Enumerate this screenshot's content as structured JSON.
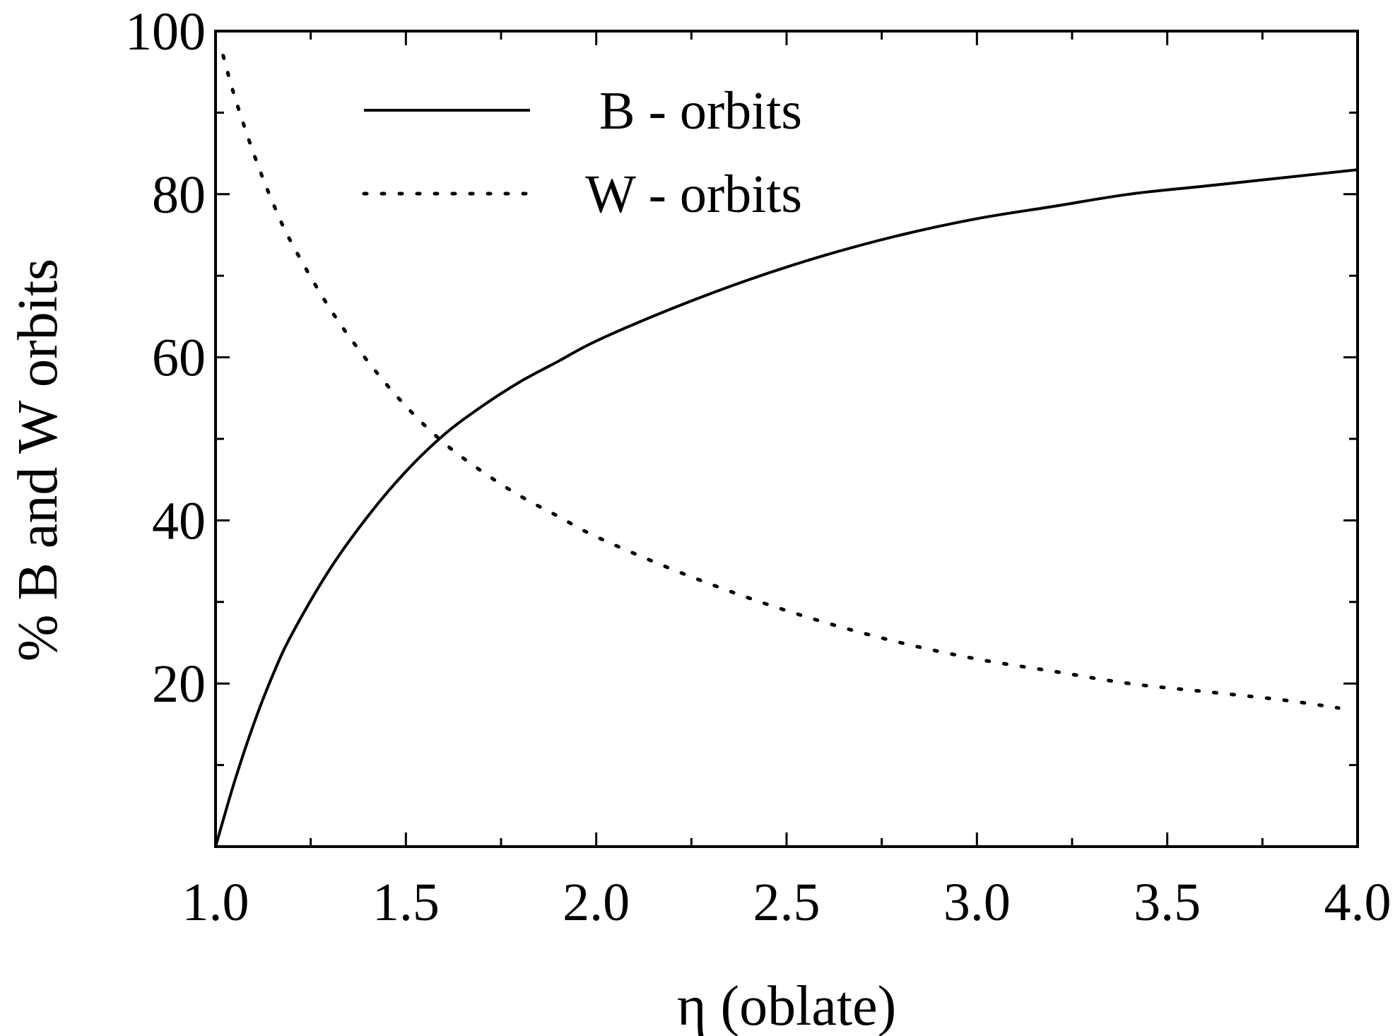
{
  "chart_data": {
    "type": "line",
    "title": "",
    "xlabel": "η (oblate)",
    "ylabel": "%  B and W orbits",
    "xlim": [
      1.0,
      4.0
    ],
    "ylim": [
      0,
      100
    ],
    "x_ticks": [
      "1.0",
      "1.5",
      "2.0",
      "2.5",
      "3.0",
      "3.5",
      "4.0"
    ],
    "y_ticks": [
      "20",
      "40",
      "60",
      "80",
      "100"
    ],
    "grid": false,
    "legend_position": "top-left",
    "series": [
      {
        "name": "B - orbits",
        "style": "solid",
        "color": "#000000",
        "x": [
          1.0,
          1.05,
          1.1,
          1.15,
          1.2,
          1.3,
          1.4,
          1.5,
          1.6,
          1.7,
          1.8,
          1.9,
          2.0,
          2.2,
          2.4,
          2.6,
          2.8,
          3.0,
          3.2,
          3.4,
          3.6,
          3.8,
          4.0
        ],
        "y": [
          0,
          8,
          15,
          21,
          26,
          34,
          40.5,
          46,
          50.5,
          54,
          57,
          59.5,
          62,
          66,
          69.5,
          72.5,
          75,
          77,
          78.5,
          80,
          81,
          82,
          83
        ]
      },
      {
        "name": "W - orbits",
        "style": "dotted",
        "color": "#000000",
        "x": [
          1.02,
          1.05,
          1.1,
          1.15,
          1.2,
          1.3,
          1.4,
          1.5,
          1.6,
          1.7,
          1.8,
          1.9,
          2.0,
          2.2,
          2.4,
          2.6,
          2.8,
          3.0,
          3.2,
          3.4,
          3.6,
          3.8,
          3.95
        ],
        "y": [
          97,
          92,
          85,
          79,
          74,
          66,
          59.5,
          54,
          49.5,
          46,
          43,
          40.5,
          38,
          34,
          30.5,
          27.5,
          25,
          23,
          21.5,
          20,
          19,
          18,
          17
        ]
      }
    ]
  }
}
